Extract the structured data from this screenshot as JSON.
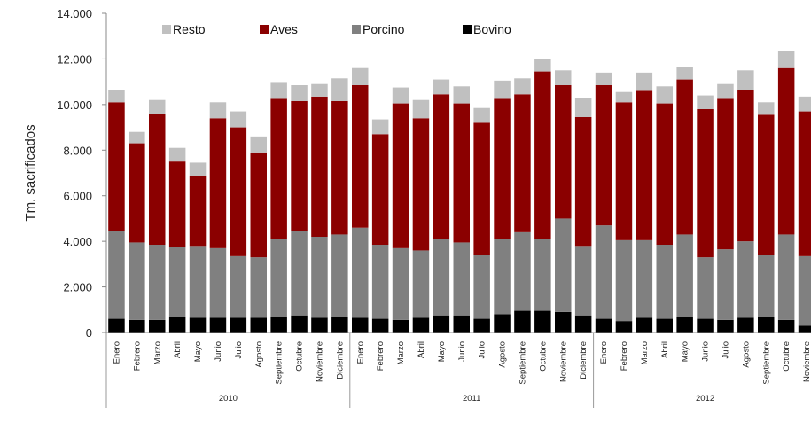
{
  "chart_data": {
    "type": "bar",
    "stacked": true,
    "ylabel": "Tm. sacrificados",
    "ylim": [
      0,
      14000
    ],
    "ytick_labels": [
      "0",
      "2.000",
      "4.000",
      "6.000",
      "8.000",
      "10.000",
      "12.000",
      "14.000"
    ],
    "ytick_values": [
      0,
      2000,
      4000,
      6000,
      8000,
      10000,
      12000,
      14000
    ],
    "grid": false,
    "legend_position": "top",
    "categories": [
      "Enero",
      "Febrero",
      "Marzo",
      "Abril",
      "Mayo",
      "Junio",
      "Julio",
      "Agosto",
      "Septiembre",
      "Octubre",
      "Noviembre",
      "Diciembre",
      "Enero",
      "Febrero",
      "Marzo",
      "Abril",
      "Mayo",
      "Junio",
      "Julio",
      "Agosto",
      "Septiembre",
      "Octubre",
      "Noviembre",
      "Diciembre",
      "Enero",
      "Febrero",
      "Marzo",
      "Abril",
      "Mayo",
      "Junio",
      "Julio",
      "Agosto",
      "Septiembre",
      "Octubre",
      "Noviembre"
    ],
    "groups": [
      {
        "label": "2010",
        "count": 12
      },
      {
        "label": "2011",
        "count": 12
      },
      {
        "label": "2012",
        "count": 11
      }
    ],
    "series": [
      {
        "name": "Bovino",
        "color": "#000000",
        "values": [
          600,
          550,
          550,
          700,
          650,
          650,
          650,
          650,
          700,
          750,
          650,
          700,
          650,
          600,
          550,
          650,
          750,
          750,
          600,
          800,
          950,
          950,
          900,
          750,
          600,
          500,
          650,
          600,
          700,
          600,
          550,
          650,
          700,
          550,
          300
        ]
      },
      {
        "name": "Porcino",
        "color": "#808080",
        "values": [
          3850,
          3400,
          3300,
          3050,
          3150,
          3050,
          2700,
          2650,
          3400,
          3700,
          3550,
          3600,
          3950,
          3250,
          3150,
          2950,
          3350,
          3200,
          2800,
          3300,
          3450,
          3150,
          4100,
          3050,
          4100,
          3550,
          3400,
          3250,
          3600,
          2700,
          3100,
          3350,
          2700,
          3750,
          3050
        ]
      },
      {
        "name": "Aves",
        "color": "#8b0000",
        "values": [
          5650,
          4350,
          5750,
          3750,
          3050,
          5700,
          5650,
          4600,
          6150,
          5700,
          6150,
          5850,
          6250,
          4850,
          6350,
          5800,
          6350,
          6100,
          5800,
          6150,
          6050,
          7350,
          5850,
          5650,
          6150,
          6050,
          6550,
          6200,
          6800,
          6500,
          6600,
          6650,
          6150,
          7300,
          6350
        ]
      },
      {
        "name": "Resto",
        "color": "#c0c0c0",
        "values": [
          550,
          500,
          600,
          600,
          600,
          700,
          700,
          700,
          700,
          700,
          550,
          1000,
          750,
          650,
          700,
          800,
          650,
          750,
          650,
          800,
          700,
          550,
          650,
          850,
          550,
          450,
          800,
          750,
          550,
          600,
          650,
          850,
          550,
          750,
          650
        ]
      }
    ],
    "legend_order": [
      "Resto",
      "Aves",
      "Porcino",
      "Bovino"
    ]
  }
}
